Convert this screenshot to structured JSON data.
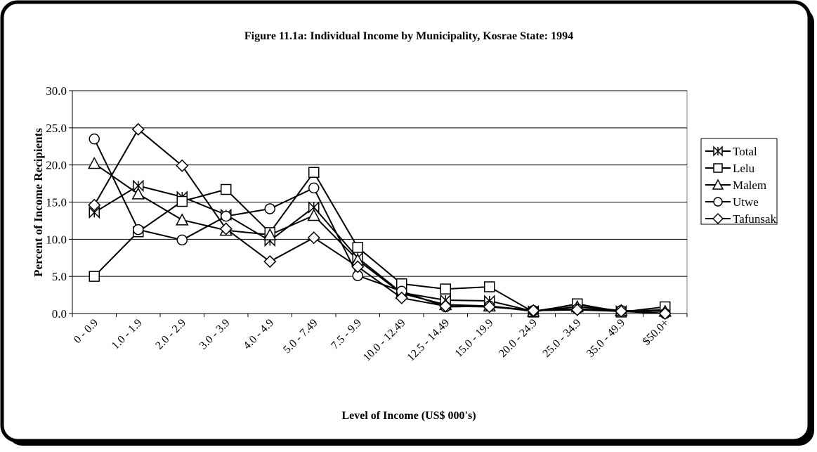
{
  "chart_data": {
    "type": "line",
    "title": "Figure 11.1a: Individual Income by Municipality, Kosrae State: 1994",
    "xlabel": "Level of Income (US$ 000's)",
    "ylabel": "Percent of Income Recipients",
    "categories": [
      "0 - 0.9",
      "1.0 - 1.9",
      "2.0 - 2.9",
      "3.0 - 3.9",
      "4.0 - 4.9",
      "5.0 - 7.49",
      "7.5 - 9.9",
      "10.0 - 12.49",
      "12.5 - 14.49",
      "15.0 - 19.9",
      "20.0 - 24.9",
      "25.0 - 34.9",
      "35.0 - 49.9",
      "$50.0+"
    ],
    "series": [
      {
        "name": "Total",
        "color": "#000000",
        "marker": "star",
        "values": [
          13.6,
          17.2,
          15.7,
          13.3,
          9.8,
          14.3,
          7.5,
          2.8,
          1.8,
          1.7,
          0.3,
          1.2,
          0.3,
          0.5
        ]
      },
      {
        "name": "Lelu",
        "color": "#000000",
        "marker": "square",
        "values": [
          5.0,
          11.0,
          15.1,
          16.7,
          10.9,
          19.0,
          8.9,
          4.0,
          3.3,
          3.6,
          0.2,
          1.3,
          0.2,
          0.9
        ]
      },
      {
        "name": "Malem",
        "color": "#000000",
        "marker": "triangle",
        "values": [
          20.2,
          16.1,
          12.6,
          11.2,
          10.6,
          13.2,
          7.2,
          2.7,
          1.2,
          1.0,
          0.3,
          0.9,
          0.4,
          0.3
        ]
      },
      {
        "name": "Utwe",
        "color": "#000000",
        "marker": "circle",
        "values": [
          23.5,
          11.3,
          9.9,
          13.1,
          14.1,
          16.9,
          5.1,
          3.0,
          0.9,
          1.0,
          0.4,
          0.6,
          0.4,
          0.0
        ]
      },
      {
        "name": "Tafunsak",
        "color": "#000000",
        "marker": "diamond",
        "values": [
          14.6,
          24.8,
          19.9,
          11.4,
          7.0,
          10.2,
          6.3,
          2.1,
          1.0,
          0.9,
          0.4,
          0.5,
          0.3,
          0.0
        ]
      }
    ],
    "ylim": [
      0,
      30
    ],
    "yticks": [
      {
        "value": 0,
        "label": "0.0"
      },
      {
        "value": 5,
        "label": "5.0"
      },
      {
        "value": 10,
        "label": "10.0"
      },
      {
        "value": 15,
        "label": "15.0"
      },
      {
        "value": 20,
        "label": "20.0"
      },
      {
        "value": 25,
        "label": "25.0"
      },
      {
        "value": 30,
        "label": "30.0"
      }
    ],
    "grid": true,
    "legend": "right"
  }
}
